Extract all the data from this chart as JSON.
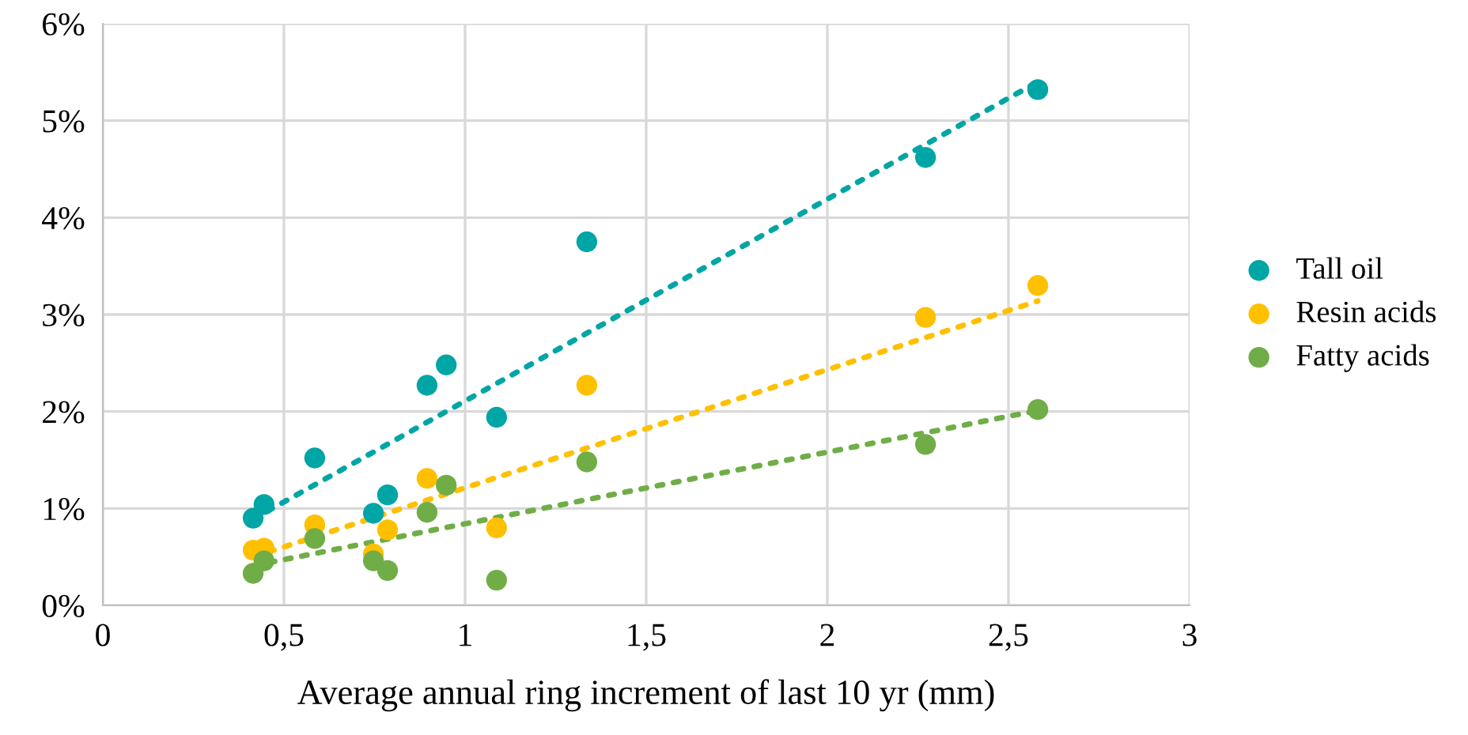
{
  "chart_data": {
    "type": "scatter",
    "xlabel": "Average annual ring increment of last 10 yr (mm)",
    "xlim": [
      0,
      3
    ],
    "ylim": [
      0,
      6
    ],
    "xticks": [
      0,
      {
        "value": 0.5,
        "label": "0,5"
      },
      1,
      {
        "value": 1.5,
        "label": "1,5"
      },
      2,
      {
        "value": 2.5,
        "label": "2,5"
      },
      3
    ],
    "yticks": [
      {
        "value": 0,
        "label": "0%"
      },
      {
        "value": 1,
        "label": "1%"
      },
      {
        "value": 2,
        "label": "2%"
      },
      {
        "value": 3,
        "label": "3%"
      },
      {
        "value": 4,
        "label": "4%"
      },
      {
        "value": 5,
        "label": "5%"
      },
      {
        "value": 6,
        "label": "6%"
      }
    ],
    "grid": true,
    "legend": "right",
    "marker": "circle",
    "series": [
      {
        "name": "Tall oil",
        "color": "#00a5a5",
        "x": [
          0.415,
          0.445,
          0.585,
          0.747,
          0.786,
          0.895,
          0.948,
          1.087,
          1.336,
          2.271,
          2.581
        ],
        "values": [
          0.9,
          1.04,
          1.52,
          0.95,
          1.14,
          2.27,
          2.48,
          1.94,
          3.75,
          4.62,
          5.32
        ]
      },
      {
        "name": "Resin acids",
        "color": "#ffc000",
        "x": [
          0.415,
          0.445,
          0.585,
          0.747,
          0.786,
          0.895,
          1.087,
          1.336,
          2.271,
          2.581
        ],
        "values": [
          0.57,
          0.59,
          0.83,
          0.53,
          0.78,
          1.31,
          0.8,
          2.27,
          2.97,
          3.3
        ]
      },
      {
        "name": "Fatty acids",
        "color": "#70ad47",
        "x": [
          0.415,
          0.445,
          0.585,
          0.747,
          0.786,
          0.895,
          0.948,
          1.087,
          1.336,
          2.271,
          2.581
        ],
        "values": [
          0.33,
          0.46,
          0.69,
          0.46,
          0.36,
          0.96,
          1.24,
          0.26,
          1.48,
          1.66,
          2.02
        ]
      },
      {
        "type": "line",
        "marker": "none",
        "line_style": "dotted",
        "color": "#00a5a5",
        "x": [
          0.415,
          2.581
        ],
        "values": [
          0.89,
          5.4
        ]
      },
      {
        "type": "line",
        "marker": "none",
        "line_style": "dotted",
        "color": "#ffc000",
        "x": [
          0.415,
          2.581
        ],
        "values": [
          0.5,
          3.14
        ]
      },
      {
        "type": "line",
        "marker": "none",
        "line_style": "dotted",
        "color": "#70ad47",
        "x": [
          0.415,
          2.581
        ],
        "values": [
          0.41,
          2.01
        ]
      }
    ]
  }
}
